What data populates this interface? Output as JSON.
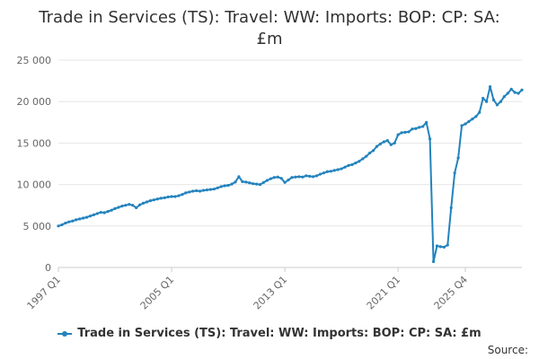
{
  "title_line1": "Trade in Services (TS): Travel: WW: Imports: BOP: CP: SA:",
  "title_line2": "£m",
  "legend_label": "Trade in Services (TS): Travel: WW: Imports: BOP: CP: SA: £m",
  "source_label": "Source:",
  "colors": {
    "series": "#2383bd",
    "grid": "#e6e6e6",
    "axis": "#cccccc"
  },
  "chart_data": {
    "type": "line",
    "xlabel": "",
    "ylabel": "",
    "ylim": [
      0,
      25000
    ],
    "y_ticks": [
      0,
      5000,
      10000,
      15000,
      20000,
      25000
    ],
    "y_tick_labels": [
      "0",
      "5 000",
      "10 000",
      "15 000",
      "20 000",
      "25 000"
    ],
    "x_tick_labels": [
      "1997 Q1",
      "2005 Q1",
      "2013 Q1",
      "2021 Q1",
      "2025 Q4"
    ],
    "x_range": [
      "1997 Q1",
      "2025 Q4"
    ],
    "grid": true,
    "legend": "bottom",
    "series": [
      {
        "name": "Trade in Services (TS): Travel: WW: Imports: BOP: CP: SA: £m",
        "values": [
          5000,
          5150,
          5350,
          5500,
          5600,
          5750,
          5850,
          5950,
          6050,
          6200,
          6350,
          6500,
          6650,
          6600,
          6750,
          6900,
          7100,
          7250,
          7400,
          7500,
          7600,
          7500,
          7200,
          7550,
          7750,
          7900,
          8050,
          8150,
          8250,
          8350,
          8400,
          8500,
          8550,
          8550,
          8650,
          8800,
          9000,
          9100,
          9200,
          9250,
          9200,
          9300,
          9350,
          9400,
          9450,
          9600,
          9750,
          9850,
          9900,
          10050,
          10300,
          10950,
          10350,
          10300,
          10200,
          10100,
          10050,
          10000,
          10250,
          10500,
          10700,
          10850,
          10900,
          10750,
          10250,
          10550,
          10850,
          10900,
          10950,
          10900,
          11050,
          11000,
          10950,
          11050,
          11250,
          11400,
          11550,
          11600,
          11700,
          11800,
          11900,
          12100,
          12300,
          12400,
          12600,
          12800,
          13100,
          13400,
          13800,
          14100,
          14600,
          14900,
          15150,
          15300,
          14800,
          15000,
          16000,
          16250,
          16300,
          16350,
          16700,
          16750,
          16900,
          17000,
          17500,
          15500,
          700,
          2600,
          2500,
          2450,
          2700,
          7200,
          11400,
          13200,
          17100,
          17300,
          17600,
          17900,
          18200,
          18700,
          20400,
          20000,
          21800,
          20200,
          19600,
          20000,
          20600,
          21000,
          21500,
          21100,
          21000,
          21400
        ]
      }
    ]
  }
}
